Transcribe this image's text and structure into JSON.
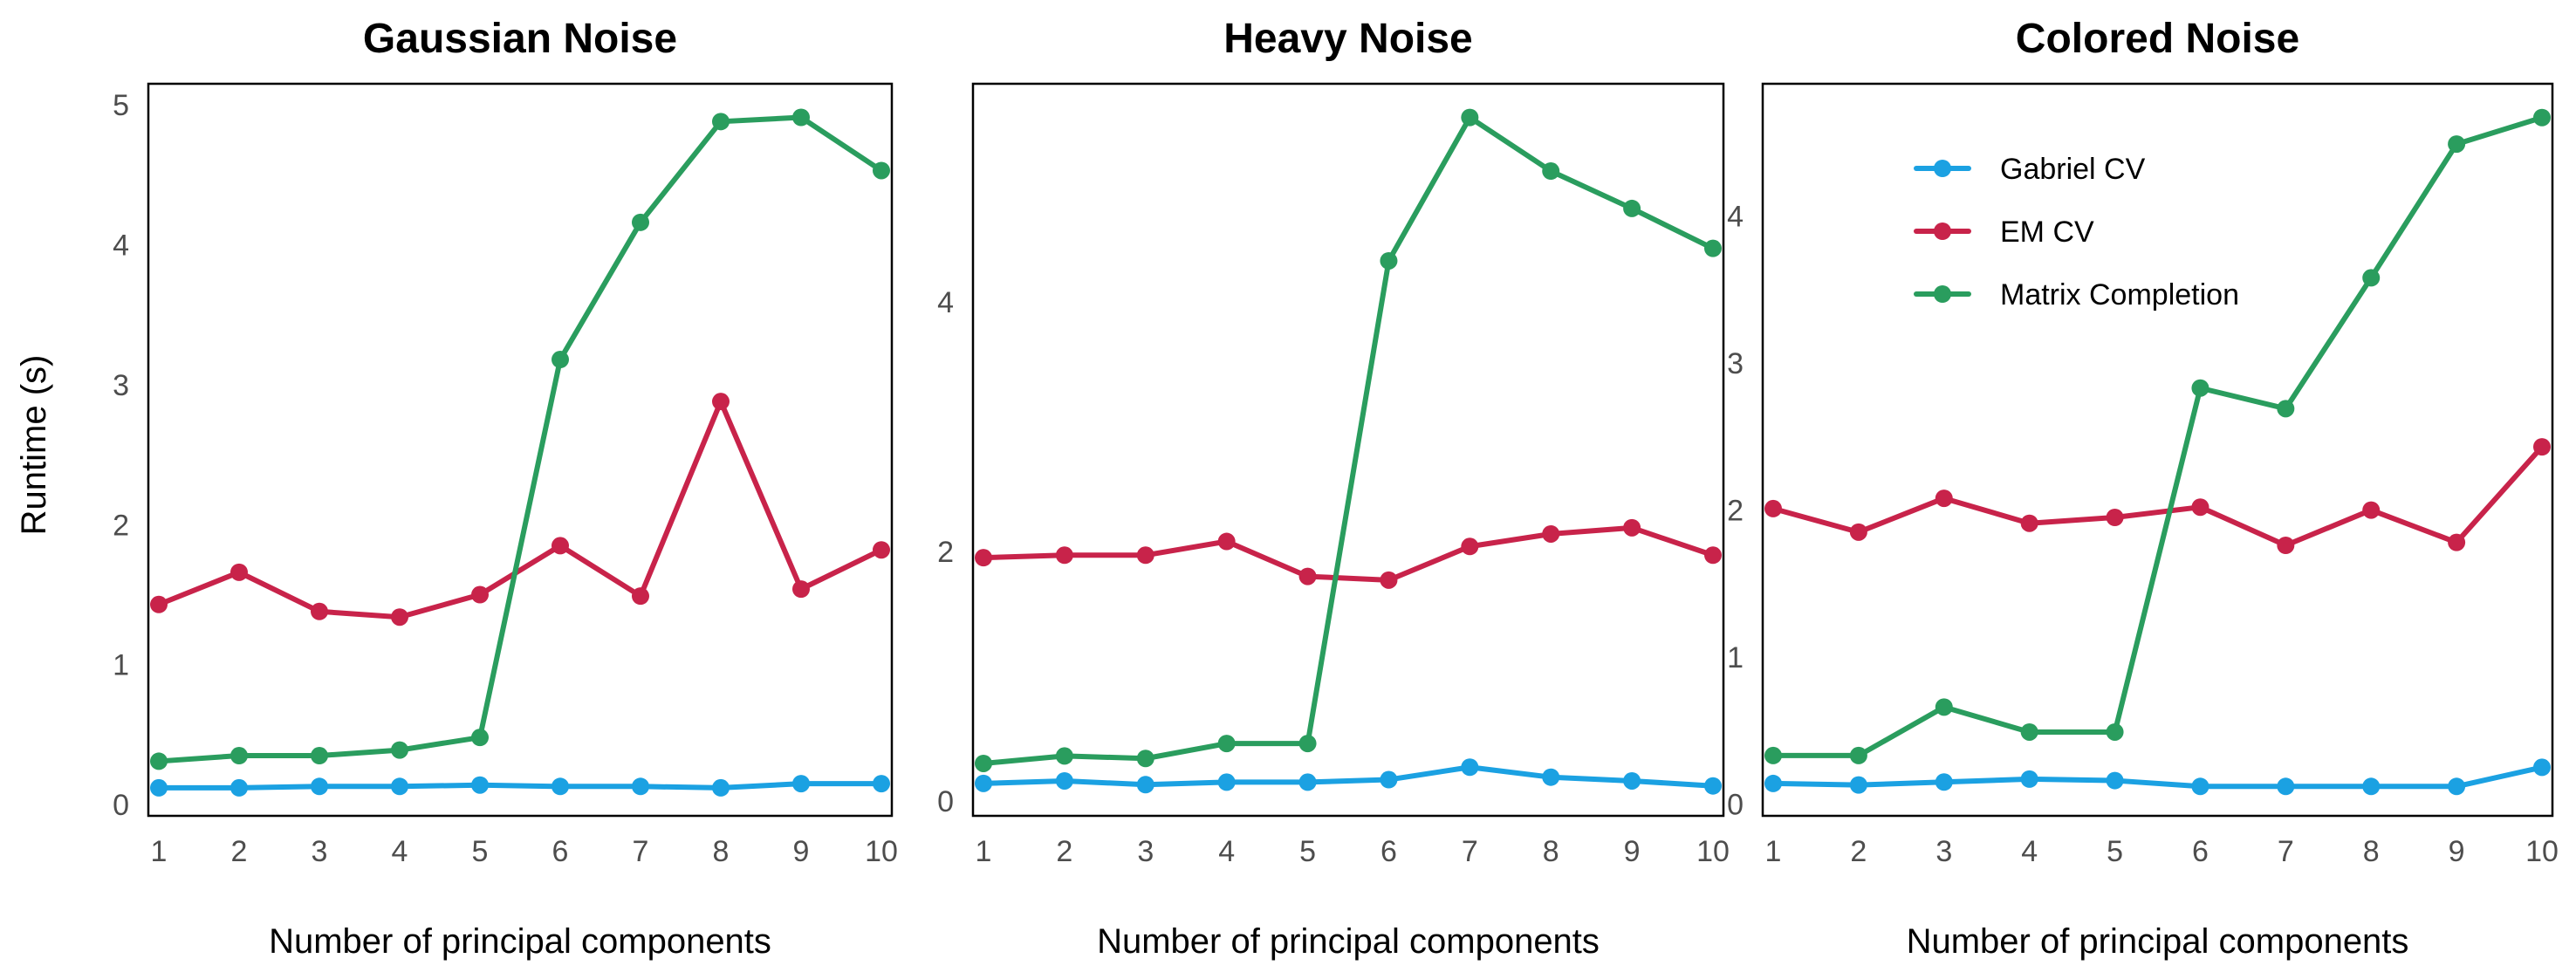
{
  "ylabel": "Runtime (s)",
  "legend": {
    "placement": "top-right",
    "entries": [
      "Gabriel CV",
      "EM CV",
      "Matrix Completion"
    ]
  },
  "colors": {
    "Gabriel CV": "#1ba1e2",
    "EM CV": "#c8234a",
    "Matrix Completion": "#2a9d5e"
  },
  "chart_data": [
    {
      "type": "line",
      "title": "Gaussian Noise",
      "xlabel": "Number of principal components",
      "ylabel": "Runtime (s)",
      "x": [
        1,
        2,
        3,
        4,
        5,
        6,
        7,
        8,
        9,
        10
      ],
      "xticks": [
        "1",
        "2",
        "3",
        "4",
        "5",
        "6",
        "7",
        "8",
        "9",
        "10"
      ],
      "yticks": [
        0,
        1,
        2,
        3,
        4,
        5
      ],
      "ylim": [
        -0.08,
        5.15
      ],
      "grid": false,
      "legend": false,
      "series": [
        {
          "name": "Gabriel CV",
          "values": [
            0.12,
            0.12,
            0.13,
            0.13,
            0.14,
            0.13,
            0.13,
            0.12,
            0.15,
            0.15
          ]
        },
        {
          "name": "EM CV",
          "values": [
            1.43,
            1.66,
            1.38,
            1.34,
            1.5,
            1.85,
            1.49,
            2.88,
            1.54,
            1.82
          ]
        },
        {
          "name": "Matrix Completion",
          "values": [
            0.31,
            0.35,
            0.35,
            0.39,
            0.48,
            3.18,
            4.16,
            4.88,
            4.91,
            4.53
          ]
        }
      ]
    },
    {
      "type": "line",
      "title": "Heavy Noise",
      "xlabel": "Number of principal components",
      "ylabel": "",
      "x": [
        1,
        2,
        3,
        4,
        5,
        6,
        7,
        8,
        9,
        10
      ],
      "xticks": [
        "1",
        "2",
        "3",
        "4",
        "5",
        "6",
        "7",
        "8",
        "9",
        "10"
      ],
      "yticks": [
        0,
        2,
        4
      ],
      "ylim": [
        -0.12,
        5.75
      ],
      "grid": false,
      "legend": false,
      "series": [
        {
          "name": "Gabriel CV",
          "values": [
            0.14,
            0.16,
            0.13,
            0.15,
            0.15,
            0.17,
            0.27,
            0.19,
            0.16,
            0.12
          ]
        },
        {
          "name": "EM CV",
          "values": [
            1.95,
            1.97,
            1.97,
            2.08,
            1.8,
            1.77,
            2.04,
            2.14,
            2.19,
            1.97
          ]
        },
        {
          "name": "Matrix Completion",
          "values": [
            0.3,
            0.36,
            0.34,
            0.46,
            0.46,
            4.33,
            5.48,
            5.05,
            4.75,
            4.43
          ]
        }
      ]
    },
    {
      "type": "line",
      "title": "Colored Noise",
      "xlabel": "Number of principal components",
      "ylabel": "",
      "x": [
        1,
        2,
        3,
        4,
        5,
        6,
        7,
        8,
        9,
        10
      ],
      "xticks": [
        "1",
        "2",
        "3",
        "4",
        "5",
        "6",
        "7",
        "8",
        "9",
        "10"
      ],
      "yticks": [
        0,
        1,
        2,
        3,
        4
      ],
      "ylim": [
        -0.08,
        4.9
      ],
      "grid": false,
      "legend": true,
      "series": [
        {
          "name": "Gabriel CV",
          "values": [
            0.14,
            0.13,
            0.15,
            0.17,
            0.16,
            0.12,
            0.12,
            0.12,
            0.12,
            0.25
          ]
        },
        {
          "name": "EM CV",
          "values": [
            2.01,
            1.85,
            2.08,
            1.91,
            1.95,
            2.02,
            1.76,
            2.0,
            1.78,
            2.43
          ]
        },
        {
          "name": "Matrix Completion",
          "values": [
            0.33,
            0.33,
            0.66,
            0.49,
            0.49,
            2.83,
            2.69,
            3.58,
            4.49,
            4.67
          ]
        }
      ]
    }
  ]
}
